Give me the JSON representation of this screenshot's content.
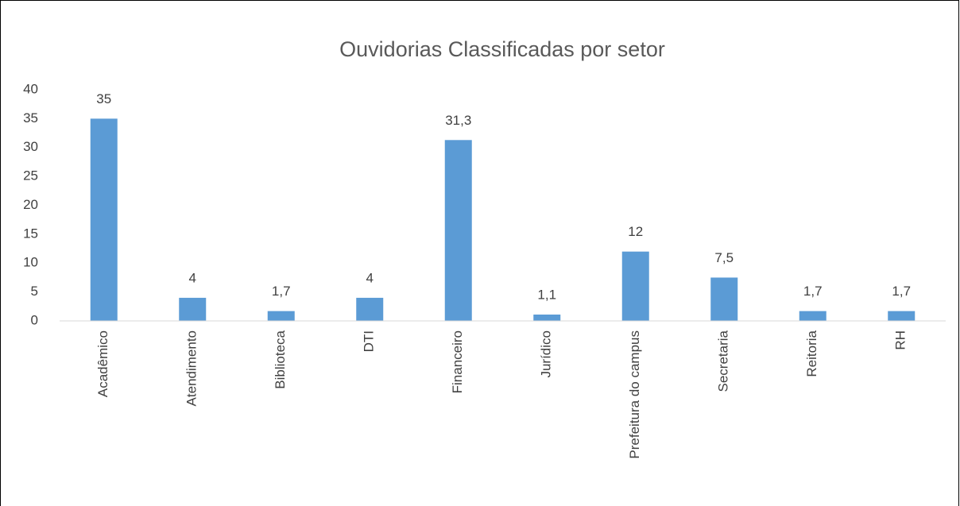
{
  "chart_data": {
    "type": "bar",
    "title": "Ouvidorias Classificadas por setor",
    "categories": [
      "Acadêmico",
      "Atendimento",
      "Biblioteca",
      "DTI",
      "Financeiro",
      "Jurídico",
      "Prefeitura do campus",
      "Secretaria",
      "Reitoria",
      "RH"
    ],
    "values": [
      35,
      4,
      1.7,
      4,
      31.3,
      1.1,
      12,
      7.5,
      1.7,
      1.7
    ],
    "value_labels": [
      "35",
      "4",
      "1,7",
      "4",
      "31,3",
      "1,1",
      "12",
      "7,5",
      "1,7",
      "1,7"
    ],
    "color": "#5b9bd5",
    "ylim": [
      0,
      40
    ],
    "yticks": [
      0,
      5,
      10,
      15,
      20,
      25,
      30,
      35,
      40
    ],
    "grid": false
  }
}
